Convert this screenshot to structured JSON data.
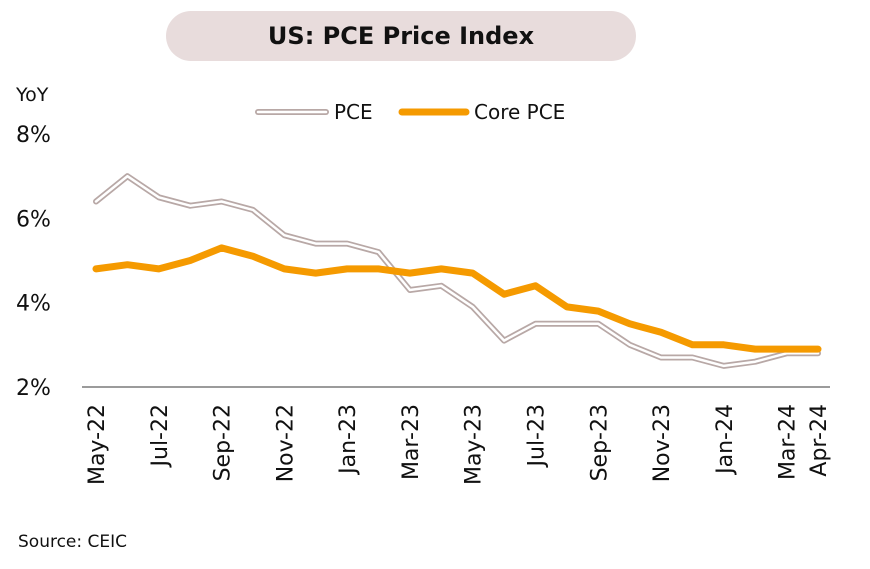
{
  "title": "US: PCE Price Index",
  "unit_label": "YoY",
  "source": "Source: CEIC",
  "chart_data": {
    "type": "line",
    "x": [
      "May-22",
      "Jun-22",
      "Jul-22",
      "Aug-22",
      "Sep-22",
      "Oct-22",
      "Nov-22",
      "Dec-22",
      "Jan-23",
      "Feb-23",
      "Mar-23",
      "Apr-23",
      "May-23",
      "Jun-23",
      "Jul-23",
      "Aug-23",
      "Sep-23",
      "Oct-23",
      "Nov-23",
      "Dec-23",
      "Jan-24",
      "Feb-24",
      "Mar-24",
      "Apr-24"
    ],
    "x_tick_labels": [
      "May-22",
      "Jul-22",
      "Sep-22",
      "Nov-22",
      "Jan-23",
      "Mar-23",
      "May-23",
      "Jul-23",
      "Sep-23",
      "Nov-23",
      "Jan-24",
      "Mar-24",
      "Apr-24"
    ],
    "ylim": [
      2,
      8
    ],
    "y_ticks": [
      2,
      4,
      6,
      8
    ],
    "y_tick_labels": [
      "2%",
      "4%",
      "6%",
      "8%"
    ],
    "grid": false,
    "legend_position": "top",
    "series": [
      {
        "name": "PCE",
        "color": "#b8a8a6",
        "style": "double",
        "values": [
          6.4,
          7.0,
          6.5,
          6.3,
          6.4,
          6.2,
          5.6,
          5.4,
          5.4,
          5.2,
          4.3,
          4.4,
          3.9,
          3.1,
          3.5,
          3.5,
          3.5,
          3.0,
          2.7,
          2.7,
          2.5,
          2.6,
          2.8,
          2.8
        ]
      },
      {
        "name": "Core PCE",
        "color": "#f59a00",
        "style": "solid",
        "values": [
          4.8,
          4.9,
          4.8,
          5.0,
          5.3,
          5.1,
          4.8,
          4.7,
          4.8,
          4.8,
          4.7,
          4.8,
          4.7,
          4.2,
          4.4,
          3.9,
          3.8,
          3.5,
          3.3,
          3.0,
          3.0,
          2.9,
          2.9,
          2.9
        ]
      }
    ]
  }
}
